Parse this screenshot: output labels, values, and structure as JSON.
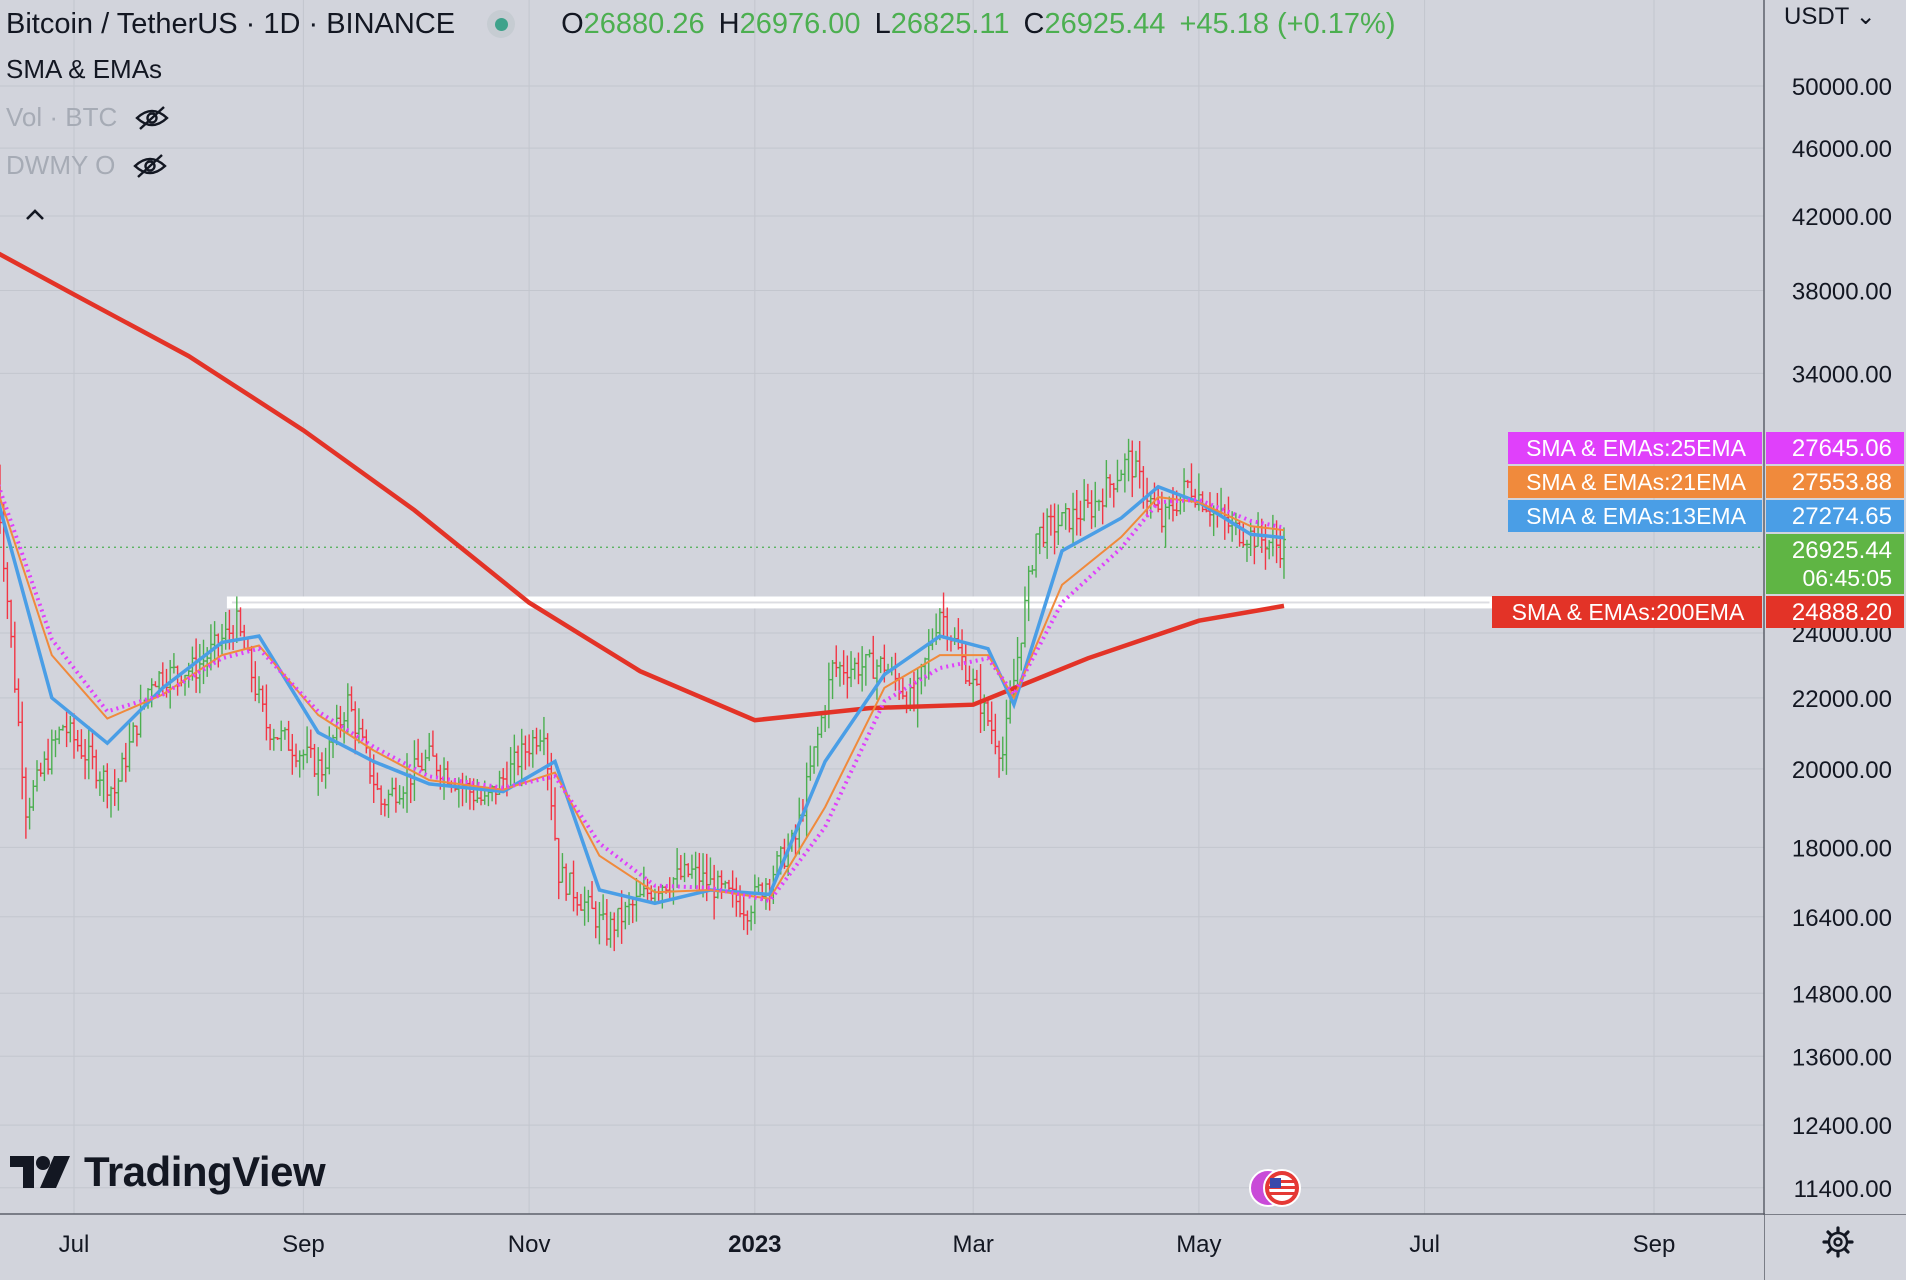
{
  "header": {
    "symbol": "Bitcoin / TetherUS · 1D · BINANCE",
    "o_label": "O",
    "o_value": "26880.26",
    "h_label": "H",
    "h_value": "26976.00",
    "l_label": "L",
    "l_value": "26825.11",
    "c_label": "C",
    "c_value": "26925.44",
    "change": "+45.18 (+0.17%)"
  },
  "indicators": [
    {
      "label": "SMA & EMAs",
      "hidden": false
    },
    {
      "label": "Vol · BTC",
      "hidden": true
    },
    {
      "label": "DWMY O",
      "hidden": true
    }
  ],
  "currency": "USDT ⌄",
  "logo_text": "TradingView",
  "colors": {
    "background": "#d2d4dc",
    "up_candle": "#4caf50",
    "down_candle": "#f23645",
    "ema13": "#4a9ee6",
    "ema21": "#f08a3c",
    "ema25": "#e040fb",
    "ema200": "#e33327"
  },
  "chart_data": {
    "type": "line",
    "price_axis": {
      "scale": "log",
      "ticks": [
        50000,
        46000,
        42000,
        38000,
        34000,
        24000,
        22000,
        20000,
        18000,
        16400,
        14800,
        13600,
        12400,
        11400
      ],
      "tick_labels": [
        "50000.00",
        "46000.00",
        "42000.00",
        "38000.00",
        "34000.00",
        "24000.00",
        "22000.00",
        "20000.00",
        "18000.00",
        "16400.00",
        "14800.00",
        "13600.00",
        "12400.00",
        "11400.00"
      ]
    },
    "time_axis": {
      "tick_labels": [
        "Jul",
        "Sep",
        "Nov",
        "2023",
        "Mar",
        "May",
        "Jul",
        "Sep"
      ],
      "tick_dates": [
        "2022-07-01",
        "2022-09-01",
        "2022-11-01",
        "2023-01-01",
        "2023-03-01",
        "2023-05-01",
        "2023-07-01",
        "2023-09-01"
      ],
      "range": [
        "2022-06-10",
        "2023-09-30"
      ]
    },
    "last_price": {
      "value": 26925.44,
      "label": "26925.44",
      "countdown": "06:45:05"
    },
    "price_line_value": 26925.44,
    "series": [
      {
        "name": "SMA & EMAs:25EMA",
        "color": "#e040fb",
        "last_value": "27645.06",
        "style": "cross",
        "points": [
          [
            "2022-06-10",
            29500
          ],
          [
            "2022-06-25",
            23800
          ],
          [
            "2022-07-10",
            21600
          ],
          [
            "2022-07-25",
            22100
          ],
          [
            "2022-08-10",
            23200
          ],
          [
            "2022-08-20",
            23500
          ],
          [
            "2022-09-05",
            21600
          ],
          [
            "2022-09-20",
            20600
          ],
          [
            "2022-10-05",
            19800
          ],
          [
            "2022-10-25",
            19500
          ],
          [
            "2022-11-08",
            19800
          ],
          [
            "2022-11-20",
            18100
          ],
          [
            "2022-12-05",
            17100
          ],
          [
            "2022-12-20",
            17050
          ],
          [
            "2023-01-05",
            16750
          ],
          [
            "2023-01-20",
            18500
          ],
          [
            "2023-02-05",
            21900
          ],
          [
            "2023-02-20",
            22900
          ],
          [
            "2023-03-05",
            23200
          ],
          [
            "2023-03-12",
            22100
          ],
          [
            "2023-03-25",
            25000
          ],
          [
            "2023-04-10",
            26900
          ],
          [
            "2023-04-20",
            28600
          ],
          [
            "2023-05-01",
            28700
          ],
          [
            "2023-05-15",
            27900
          ],
          [
            "2023-05-24",
            27645
          ]
        ]
      },
      {
        "name": "SMA & EMAs:21EMA",
        "color": "#f08a3c",
        "last_value": "27553.88",
        "style": "line",
        "points": [
          [
            "2022-06-10",
            29200
          ],
          [
            "2022-06-25",
            23300
          ],
          [
            "2022-07-10",
            21400
          ],
          [
            "2022-07-25",
            22100
          ],
          [
            "2022-08-10",
            23300
          ],
          [
            "2022-08-20",
            23600
          ],
          [
            "2022-09-05",
            21500
          ],
          [
            "2022-09-20",
            20500
          ],
          [
            "2022-10-05",
            19700
          ],
          [
            "2022-10-25",
            19450
          ],
          [
            "2022-11-08",
            19900
          ],
          [
            "2022-11-20",
            17800
          ],
          [
            "2022-12-05",
            16950
          ],
          [
            "2022-12-20",
            17000
          ],
          [
            "2023-01-05",
            16800
          ],
          [
            "2023-01-20",
            19000
          ],
          [
            "2023-02-05",
            22300
          ],
          [
            "2023-02-20",
            23300
          ],
          [
            "2023-03-05",
            23300
          ],
          [
            "2023-03-12",
            22000
          ],
          [
            "2023-03-25",
            25600
          ],
          [
            "2023-04-10",
            27300
          ],
          [
            "2023-04-20",
            28800
          ],
          [
            "2023-05-01",
            28600
          ],
          [
            "2023-05-15",
            27700
          ],
          [
            "2023-05-24",
            27554
          ]
        ]
      },
      {
        "name": "SMA & EMAs:13EMA",
        "color": "#4a9ee6",
        "last_value": "27274.65",
        "style": "line",
        "points": [
          [
            "2022-06-10",
            28900
          ],
          [
            "2022-06-25",
            22000
          ],
          [
            "2022-07-10",
            20700
          ],
          [
            "2022-07-25",
            22300
          ],
          [
            "2022-08-10",
            23700
          ],
          [
            "2022-08-20",
            23900
          ],
          [
            "2022-09-05",
            21000
          ],
          [
            "2022-09-20",
            20200
          ],
          [
            "2022-10-05",
            19600
          ],
          [
            "2022-10-25",
            19400
          ],
          [
            "2022-11-08",
            20200
          ],
          [
            "2022-11-20",
            17000
          ],
          [
            "2022-12-05",
            16700
          ],
          [
            "2022-12-20",
            17000
          ],
          [
            "2023-01-05",
            16900
          ],
          [
            "2023-01-20",
            20200
          ],
          [
            "2023-02-05",
            22700
          ],
          [
            "2023-02-20",
            23900
          ],
          [
            "2023-03-05",
            23500
          ],
          [
            "2023-03-12",
            21800
          ],
          [
            "2023-03-25",
            26800
          ],
          [
            "2023-04-10",
            28000
          ],
          [
            "2023-04-20",
            29200
          ],
          [
            "2023-05-01",
            28600
          ],
          [
            "2023-05-15",
            27400
          ],
          [
            "2023-05-24",
            27275
          ]
        ]
      },
      {
        "name": "SMA & EMAs:200EMA",
        "color": "#e33327",
        "last_value": "24888.20",
        "style": "thick",
        "points": [
          [
            "2022-06-10",
            40000
          ],
          [
            "2022-07-01",
            37800
          ],
          [
            "2022-08-01",
            34800
          ],
          [
            "2022-09-01",
            31500
          ],
          [
            "2022-10-01",
            28300
          ],
          [
            "2022-11-01",
            25000
          ],
          [
            "2022-12-01",
            22800
          ],
          [
            "2023-01-01",
            21350
          ],
          [
            "2023-02-01",
            21700
          ],
          [
            "2023-03-01",
            21800
          ],
          [
            "2023-04-01",
            23200
          ],
          [
            "2023-05-01",
            24400
          ],
          [
            "2023-05-24",
            24888
          ]
        ]
      }
    ],
    "candles": {
      "up_color": "#4caf50",
      "down_color": "#f23645",
      "path": [
        [
          "2022-06-10",
          29700
        ],
        [
          "2022-06-18",
          19000
        ],
        [
          "2022-06-28",
          21200
        ],
        [
          "2022-07-12",
          19400
        ],
        [
          "2022-07-22",
          22600
        ],
        [
          "2022-08-03",
          22900
        ],
        [
          "2022-08-14",
          24300
        ],
        [
          "2022-08-22",
          21200
        ],
        [
          "2022-09-06",
          20000
        ],
        [
          "2022-09-13",
          21900
        ],
        [
          "2022-09-22",
          19100
        ],
        [
          "2022-10-05",
          20300
        ],
        [
          "2022-10-20",
          19100
        ],
        [
          "2022-11-05",
          21200
        ],
        [
          "2022-11-09",
          17400
        ],
        [
          "2022-11-22",
          16100
        ],
        [
          "2022-12-05",
          17100
        ],
        [
          "2022-12-15",
          17400
        ],
        [
          "2022-12-30",
          16600
        ],
        [
          "2023-01-12",
          18200
        ],
        [
          "2023-01-22",
          22900
        ],
        [
          "2023-02-05",
          23000
        ],
        [
          "2023-02-13",
          21800
        ],
        [
          "2023-02-20",
          24800
        ],
        [
          "2023-03-09",
          20400
        ],
        [
          "2023-03-18",
          27400
        ],
        [
          "2023-04-02",
          28400
        ],
        [
          "2023-04-12",
          30300
        ],
        [
          "2023-04-21",
          27800
        ],
        [
          "2023-04-28",
          29300
        ],
        [
          "2023-05-10",
          27600
        ],
        [
          "2023-05-24",
          26925
        ]
      ]
    },
    "support_zone": {
      "from": "2022-08-12",
      "low": 24888.2,
      "high": 25120
    },
    "right_labels": [
      {
        "text": "SMA & EMAs:25EMA",
        "value": "27645.06",
        "color": "#e040fb"
      },
      {
        "text": "SMA & EMAs:21EMA",
        "value": "27553.88",
        "color": "#f08a3c"
      },
      {
        "text": "SMA & EMAs:13EMA",
        "value": "27274.65",
        "color": "#4a9ee6"
      },
      {
        "text": "SMA & EMAs:200EMA",
        "value": "24888.20",
        "color": "#e33327"
      }
    ]
  }
}
